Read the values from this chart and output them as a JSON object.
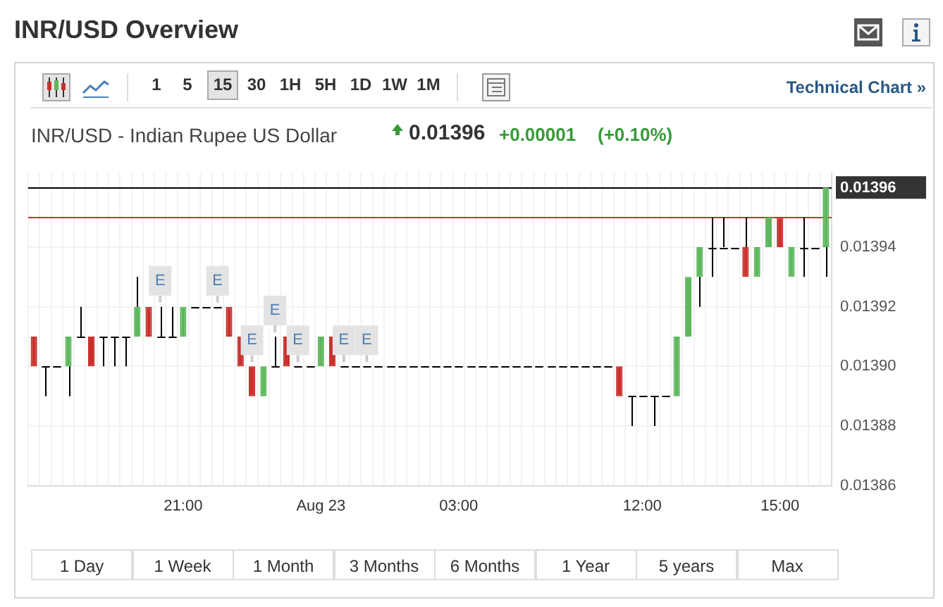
{
  "chart_data": {
    "type": "candlestick",
    "title": "INR/USD Overview",
    "subtitle": "INR/USD - Indian Rupee US Dollar",
    "categories": [
      null,
      null,
      null,
      null,
      null,
      null,
      null,
      null,
      null,
      null,
      null,
      null,
      null,
      "21:00",
      null,
      null,
      null,
      null,
      null,
      null,
      null,
      null,
      null,
      null,
      null,
      "Aug 23",
      null,
      null,
      null,
      null,
      null,
      null,
      null,
      null,
      null,
      null,
      null,
      "03:00",
      null,
      null,
      null,
      null,
      null,
      null,
      null,
      null,
      null,
      null,
      null,
      null,
      null,
      null,
      null,
      "12:00",
      null,
      null,
      null,
      null,
      null,
      null,
      null,
      null,
      null,
      null,
      null,
      "15:00",
      null,
      null,
      null,
      null
    ],
    "ohlc": [
      [
        0.01391,
        0.01391,
        0.0139,
        0.0139
      ],
      [
        0.0139,
        0.0139,
        0.01389,
        0.0139
      ],
      [
        0.0139,
        0.0139,
        0.0139,
        0.0139
      ],
      [
        0.0139,
        0.01391,
        0.01389,
        0.01391
      ],
      [
        0.01391,
        0.01392,
        0.01391,
        0.01391
      ],
      [
        0.01391,
        0.01391,
        0.0139,
        0.0139
      ],
      [
        0.01391,
        0.01391,
        0.0139,
        0.01391
      ],
      [
        0.01391,
        0.01391,
        0.0139,
        0.01391
      ],
      [
        0.01391,
        0.01391,
        0.0139,
        0.01391
      ],
      [
        0.01391,
        0.01393,
        0.01391,
        0.01392
      ],
      [
        0.01392,
        0.01392,
        0.01391,
        0.01391
      ],
      [
        0.01391,
        0.01392,
        0.01391,
        0.01391
      ],
      [
        0.01391,
        0.01392,
        0.01391,
        0.01391
      ],
      [
        0.01391,
        0.01392,
        0.01391,
        0.01392
      ],
      [
        0.01392,
        0.01392,
        0.01392,
        0.01392
      ],
      [
        0.01392,
        0.01392,
        0.01392,
        0.01392
      ],
      [
        0.01392,
        0.01392,
        0.01392,
        0.01392
      ],
      [
        0.01392,
        0.01392,
        0.01391,
        0.01391
      ],
      [
        0.01391,
        0.01391,
        0.0139,
        0.0139
      ],
      [
        0.0139,
        0.0139,
        0.01389,
        0.01389
      ],
      [
        0.01389,
        0.0139,
        0.01389,
        0.0139
      ],
      [
        0.0139,
        0.01391,
        0.0139,
        0.0139
      ],
      [
        0.01391,
        0.01391,
        0.0139,
        0.0139
      ],
      [
        0.0139,
        0.0139,
        0.0139,
        0.0139
      ],
      [
        0.0139,
        0.0139,
        0.0139,
        0.0139
      ],
      [
        0.0139,
        0.01391,
        0.0139,
        0.01391
      ],
      [
        0.01391,
        0.01391,
        0.0139,
        0.0139
      ],
      [
        0.0139,
        0.0139,
        0.0139,
        0.0139
      ],
      [
        0.0139,
        0.0139,
        0.0139,
        0.0139
      ],
      [
        0.0139,
        0.0139,
        0.0139,
        0.0139
      ],
      [
        0.0139,
        0.0139,
        0.0139,
        0.0139
      ],
      [
        0.0139,
        0.0139,
        0.0139,
        0.0139
      ],
      [
        0.0139,
        0.0139,
        0.0139,
        0.0139
      ],
      [
        0.0139,
        0.0139,
        0.0139,
        0.0139
      ],
      [
        0.0139,
        0.0139,
        0.0139,
        0.0139
      ],
      [
        0.0139,
        0.0139,
        0.0139,
        0.0139
      ],
      [
        0.0139,
        0.0139,
        0.0139,
        0.0139
      ],
      [
        0.0139,
        0.0139,
        0.0139,
        0.0139
      ],
      [
        0.0139,
        0.0139,
        0.0139,
        0.0139
      ],
      [
        0.0139,
        0.0139,
        0.0139,
        0.0139
      ],
      [
        0.0139,
        0.0139,
        0.0139,
        0.0139
      ],
      [
        0.0139,
        0.0139,
        0.0139,
        0.0139
      ],
      [
        0.0139,
        0.0139,
        0.0139,
        0.0139
      ],
      [
        0.0139,
        0.0139,
        0.0139,
        0.0139
      ],
      [
        0.0139,
        0.0139,
        0.0139,
        0.0139
      ],
      [
        0.0139,
        0.0139,
        0.0139,
        0.0139
      ],
      [
        0.0139,
        0.0139,
        0.0139,
        0.0139
      ],
      [
        0.0139,
        0.0139,
        0.0139,
        0.0139
      ],
      [
        0.0139,
        0.0139,
        0.0139,
        0.0139
      ],
      [
        0.0139,
        0.0139,
        0.0139,
        0.0139
      ],
      [
        0.0139,
        0.0139,
        0.0139,
        0.0139
      ],
      [
        0.0139,
        0.0139,
        0.01389,
        0.01389
      ],
      [
        0.01389,
        0.01389,
        0.01388,
        0.01389
      ],
      [
        0.01389,
        0.01389,
        0.01389,
        0.01389
      ],
      [
        0.01389,
        0.01389,
        0.01388,
        0.01389
      ],
      [
        0.01389,
        0.01389,
        0.01389,
        0.01389
      ],
      [
        0.01389,
        0.01391,
        0.01389,
        0.01391
      ],
      [
        0.01391,
        0.01393,
        0.01391,
        0.01393
      ],
      [
        0.01393,
        0.01394,
        0.01392,
        0.01394
      ],
      [
        0.01394,
        0.01395,
        0.01393,
        0.01394
      ],
      [
        0.01394,
        0.01395,
        0.01394,
        0.01394
      ],
      [
        0.01394,
        0.01394,
        0.01394,
        0.01394
      ],
      [
        0.01394,
        0.01395,
        0.01393,
        0.01393
      ],
      [
        0.01393,
        0.01394,
        0.01393,
        0.01394
      ],
      [
        0.01394,
        0.01395,
        0.01394,
        0.01395
      ],
      [
        0.01395,
        0.01395,
        0.01394,
        0.01394
      ],
      [
        0.01393,
        0.01394,
        0.01393,
        0.01394
      ],
      [
        0.01394,
        0.01395,
        0.01393,
        0.01394
      ],
      [
        0.01394,
        0.01394,
        0.01394,
        0.01394
      ],
      [
        0.01394,
        0.01396,
        0.01393,
        0.01396
      ]
    ],
    "colors": [
      "#c9302c",
      "#000000",
      "#000000",
      "#5cb85c",
      "#000000",
      "#c9302c",
      "#000000",
      "#000000",
      "#000000",
      "#5cb85c",
      "#c9302c",
      "#000000",
      "#000000",
      "#5cb85c",
      "#000000",
      "#000000",
      "#000000",
      "#c9302c",
      "#c9302c",
      "#c9302c",
      "#5cb85c",
      "#000000",
      "#c9302c",
      "#000000",
      "#000000",
      "#5cb85c",
      "#c9302c",
      "#000000",
      "#000000",
      "#000000",
      "#000000",
      "#000000",
      "#000000",
      "#000000",
      "#000000",
      "#000000",
      "#000000",
      "#000000",
      "#000000",
      "#000000",
      "#000000",
      "#000000",
      "#000000",
      "#000000",
      "#000000",
      "#000000",
      "#000000",
      "#000000",
      "#000000",
      "#000000",
      "#000000",
      "#c9302c",
      "#000000",
      "#000000",
      "#000000",
      "#000000",
      "#5cb85c",
      "#5cb85c",
      "#5cb85c",
      "#000000",
      "#000000",
      "#000000",
      "#c9302c",
      "#5cb85c",
      "#5cb85c",
      "#c9302c",
      "#5cb85c",
      "#000000",
      "#000000",
      "#5cb85c"
    ],
    "ylim": [
      0.01386,
      0.013965
    ],
    "yticks": [
      0.01386,
      0.01388,
      {
        "value": 0.0139,
        "label": "0.01390"
      },
      0.01392,
      0.01394
    ],
    "grid": true,
    "ref_lines": [
      {
        "axis": "y",
        "value": 0.01396,
        "label": "0.01396",
        "color": "#000000"
      },
      {
        "axis": "y",
        "value": 0.01395,
        "color": "#c0392b"
      }
    ],
    "annotations": [
      "1 5",
      "15",
      "30",
      "1H",
      "5H",
      "1D",
      "1W",
      "1M",
      "Technical Chart »",
      "0.01396",
      "+0.00001",
      "(+0.10%)",
      "1 Day",
      "1 Week",
      "1 Month",
      "3 Months",
      "6 Months",
      "1 Year",
      "5 years",
      "Max",
      {
        "text": "E",
        "y": 0.01392
      },
      {
        "text": "E",
        "y": 0.01392
      },
      {
        "text": "E",
        "y": 0.01391
      },
      {
        "text": "E",
        "y": 0.0139
      },
      {
        "text": "E",
        "y": 0.0139
      },
      {
        "text": "E",
        "y": 0.0139
      },
      {
        "text": "E",
        "y": 0.0139
      }
    ]
  }
}
